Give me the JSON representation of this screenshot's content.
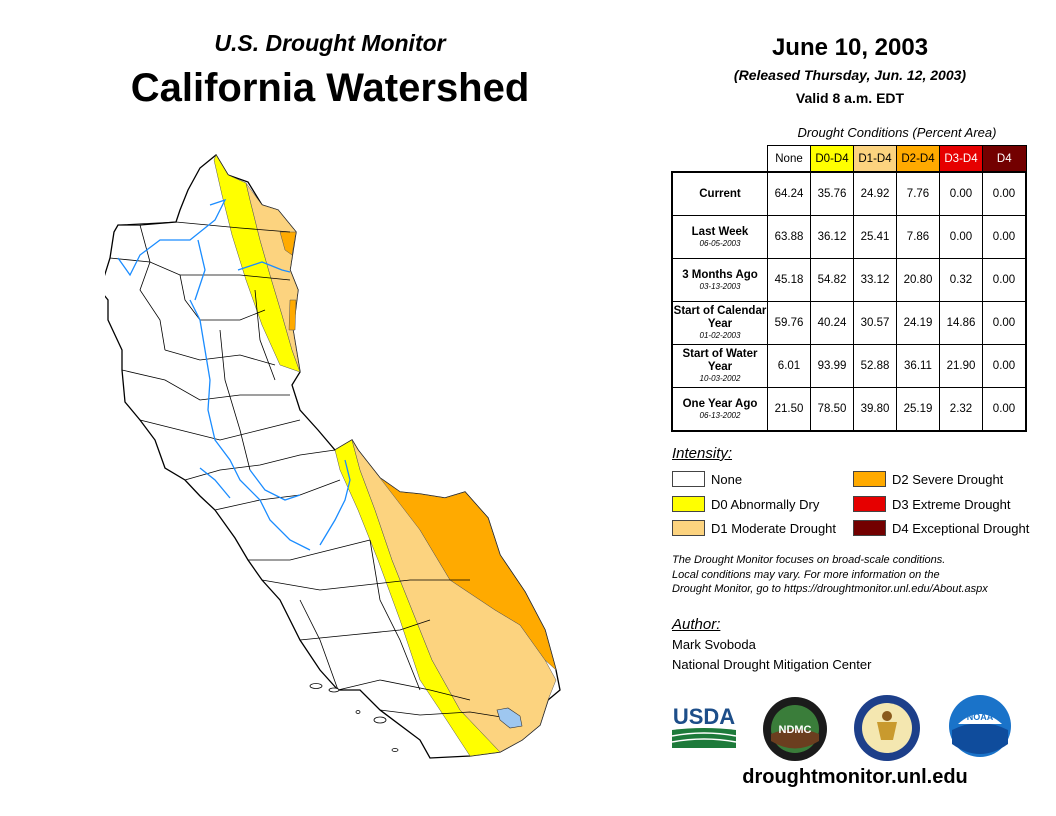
{
  "header": {
    "subtitle": "U.S. Drought Monitor",
    "title": "California Watershed",
    "date": "June 10, 2003",
    "released": "(Released Thursday, Jun. 12, 2003)",
    "valid": "Valid 8 a.m. EDT"
  },
  "table": {
    "caption": "Drought Conditions (Percent Area)",
    "columns": [
      {
        "label": "None",
        "bg": "#ffffff",
        "fg": "#000000"
      },
      {
        "label": "D0-D4",
        "bg": "#ffff00",
        "fg": "#000000"
      },
      {
        "label": "D1-D4",
        "bg": "#fcd37f",
        "fg": "#000000"
      },
      {
        "label": "D2-D4",
        "bg": "#ffaa00",
        "fg": "#000000"
      },
      {
        "label": "D3-D4",
        "bg": "#e60000",
        "fg": "#ffffff"
      },
      {
        "label": "D4",
        "bg": "#730000",
        "fg": "#ffffff"
      }
    ],
    "rows": [
      {
        "label": "Current",
        "date": "",
        "values": [
          "64.24",
          "35.76",
          "24.92",
          "7.76",
          "0.00",
          "0.00"
        ]
      },
      {
        "label": "Last Week",
        "date": "06-05-2003",
        "values": [
          "63.88",
          "36.12",
          "25.41",
          "7.86",
          "0.00",
          "0.00"
        ]
      },
      {
        "label": "3 Months Ago",
        "date": "03-13-2003",
        "values": [
          "45.18",
          "54.82",
          "33.12",
          "20.80",
          "0.32",
          "0.00"
        ]
      },
      {
        "label": "Start of Calendar Year",
        "date": "01-02-2003",
        "values": [
          "59.76",
          "40.24",
          "30.57",
          "24.19",
          "14.86",
          "0.00"
        ]
      },
      {
        "label": "Start of Water Year",
        "date": "10-03-2002",
        "values": [
          "6.01",
          "93.99",
          "52.88",
          "36.11",
          "21.90",
          "0.00"
        ]
      },
      {
        "label": "One Year Ago",
        "date": "06-13-2002",
        "values": [
          "21.50",
          "78.50",
          "39.80",
          "25.19",
          "2.32",
          "0.00"
        ]
      }
    ]
  },
  "legend": {
    "heading": "Intensity:",
    "items": [
      {
        "label": "None",
        "color": "#ffffff"
      },
      {
        "label": "D0 Abnormally Dry",
        "color": "#ffff00"
      },
      {
        "label": "D1 Moderate Drought",
        "color": "#fcd37f"
      },
      {
        "label": "D2 Severe Drought",
        "color": "#ffaa00"
      },
      {
        "label": "D3 Extreme Drought",
        "color": "#e60000"
      },
      {
        "label": "D4 Exceptional Drought",
        "color": "#730000"
      }
    ]
  },
  "note": {
    "line1": "The Drought Monitor focuses on broad-scale conditions.",
    "line2": "Local conditions may vary. For more information on the",
    "line3": "Drought Monitor, go to https://droughtmonitor.unl.edu/About.aspx"
  },
  "author": {
    "heading": "Author:",
    "name": "Mark Svoboda",
    "org": "National Drought Mitigation Center"
  },
  "logos": {
    "usda": "USDA",
    "ndmc": "NDMC",
    "noaa": "NOAA"
  },
  "footer": {
    "site": "droughtmonitor.unl.edu"
  }
}
